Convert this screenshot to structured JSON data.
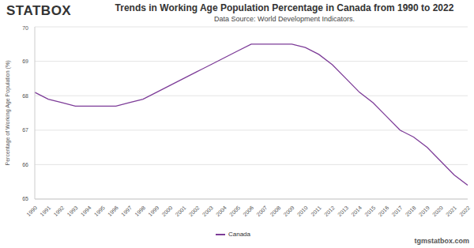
{
  "chart_data": {
    "type": "line",
    "logo": "STATBOX",
    "title": "Trends in Working Age Population Percentage in Canada from 1990 to 2022",
    "subtitle": "Data Source: World Development Indicators.",
    "y_label": "Percentage of Working Age Population (%)",
    "footer": "tgmstatbox.com",
    "categories": [
      "1990",
      "1991",
      "1992",
      "1993",
      "1994",
      "1995",
      "1996",
      "1997",
      "1998",
      "1999",
      "2000",
      "2001",
      "2002",
      "2003",
      "2004",
      "2005",
      "2006",
      "2007",
      "2008",
      "2009",
      "2010",
      "2011",
      "2012",
      "2013",
      "2014",
      "2015",
      "2016",
      "2017",
      "2018",
      "2019",
      "2020",
      "2021",
      "2022"
    ],
    "series": [
      {
        "name": "Canada",
        "color": "#7d3c98",
        "values": [
          68.1,
          67.9,
          67.8,
          67.7,
          67.7,
          67.7,
          67.7,
          67.8,
          67.9,
          68.1,
          68.3,
          68.5,
          68.7,
          68.9,
          69.1,
          69.3,
          69.5,
          69.5,
          69.5,
          69.5,
          69.4,
          69.2,
          68.9,
          68.5,
          68.1,
          67.8,
          67.4,
          67.0,
          66.8,
          66.5,
          66.1,
          65.7,
          65.4
        ]
      }
    ],
    "ylim": [
      65,
      70
    ],
    "yticks": [
      65,
      66,
      67,
      68,
      69,
      70
    ],
    "grid": true,
    "legend": "bottom"
  }
}
